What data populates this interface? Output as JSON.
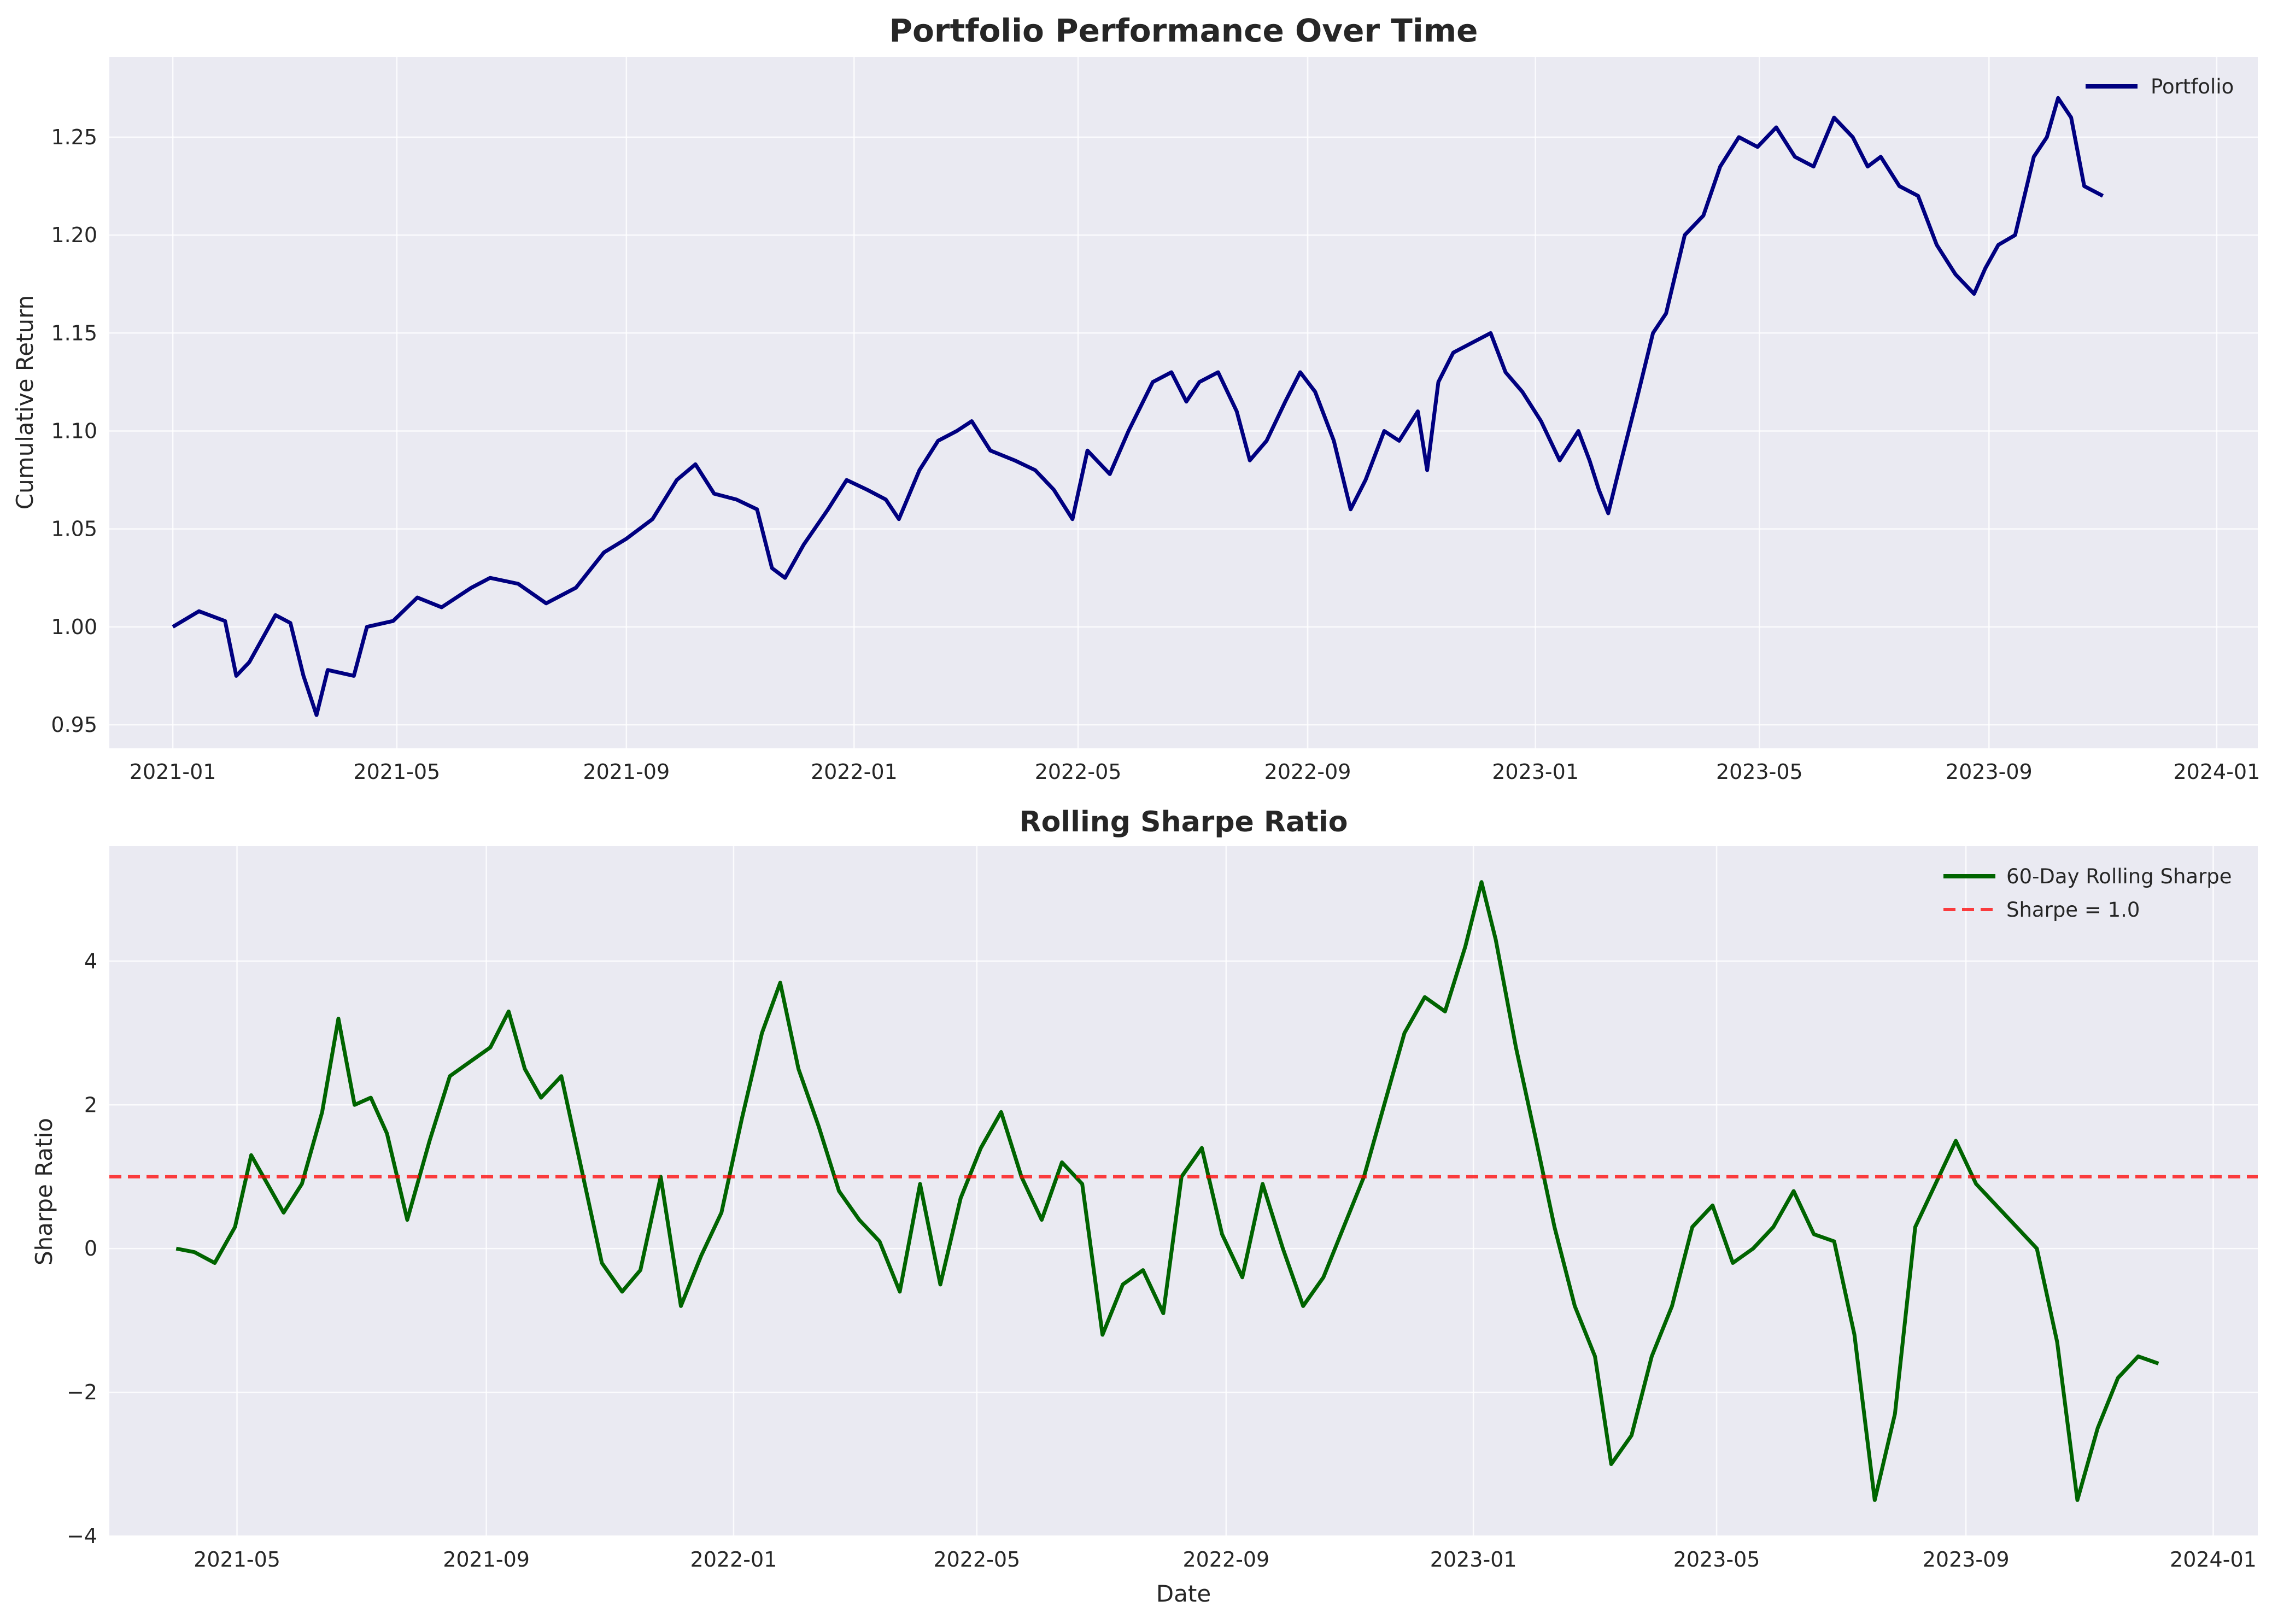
{
  "chart_data": [
    {
      "type": "line",
      "title": "Portfolio Performance Over Time",
      "xlabel": "",
      "ylabel": "Cumulative Return",
      "ylim": [
        0.938,
        1.291
      ],
      "xlim": [
        "2020-11-28",
        "2024-01-23"
      ],
      "x_ticks": [
        "2021-01",
        "2021-05",
        "2021-09",
        "2022-01",
        "2022-05",
        "2022-09",
        "2023-01",
        "2023-05",
        "2023-09",
        "2024-01"
      ],
      "y_ticks": [
        "0.95",
        "1.00",
        "1.05",
        "1.10",
        "1.15",
        "1.20",
        "1.25"
      ],
      "grid": true,
      "legend": "top-right",
      "series": [
        {
          "name": "Portfolio",
          "color": "#000080",
          "points": [
            [
              "2021-01-01",
              1.0
            ],
            [
              "2021-01-15",
              1.008
            ],
            [
              "2021-01-29",
              1.003
            ],
            [
              "2021-02-04",
              0.975
            ],
            [
              "2021-02-11",
              0.982
            ],
            [
              "2021-02-25",
              1.006
            ],
            [
              "2021-03-05",
              1.002
            ],
            [
              "2021-03-12",
              0.975
            ],
            [
              "2021-03-19",
              0.955
            ],
            [
              "2021-03-25",
              0.978
            ],
            [
              "2021-04-08",
              0.975
            ],
            [
              "2021-04-15",
              1.0
            ],
            [
              "2021-04-29",
              1.003
            ],
            [
              "2021-05-12",
              1.015
            ],
            [
              "2021-05-25",
              1.01
            ],
            [
              "2021-06-10",
              1.02
            ],
            [
              "2021-06-20",
              1.025
            ],
            [
              "2021-07-05",
              1.022
            ],
            [
              "2021-07-20",
              1.012
            ],
            [
              "2021-08-05",
              1.02
            ],
            [
              "2021-08-20",
              1.038
            ],
            [
              "2021-09-01",
              1.045
            ],
            [
              "2021-09-15",
              1.055
            ],
            [
              "2021-09-28",
              1.075
            ],
            [
              "2021-10-08",
              1.083
            ],
            [
              "2021-10-18",
              1.068
            ],
            [
              "2021-10-30",
              1.065
            ],
            [
              "2021-11-10",
              1.06
            ],
            [
              "2021-11-18",
              1.03
            ],
            [
              "2021-11-25",
              1.025
            ],
            [
              "2021-12-05",
              1.042
            ],
            [
              "2021-12-18",
              1.06
            ],
            [
              "2021-12-28",
              1.075
            ],
            [
              "2022-01-08",
              1.07
            ],
            [
              "2022-01-18",
              1.065
            ],
            [
              "2022-01-25",
              1.055
            ],
            [
              "2022-02-05",
              1.08
            ],
            [
              "2022-02-15",
              1.095
            ],
            [
              "2022-02-25",
              1.1
            ],
            [
              "2022-03-05",
              1.105
            ],
            [
              "2022-03-15",
              1.09
            ],
            [
              "2022-03-28",
              1.085
            ],
            [
              "2022-04-08",
              1.08
            ],
            [
              "2022-04-18",
              1.07
            ],
            [
              "2022-04-28",
              1.055
            ],
            [
              "2022-05-06",
              1.09
            ],
            [
              "2022-05-18",
              1.078
            ],
            [
              "2022-05-28",
              1.1
            ],
            [
              "2022-06-10",
              1.125
            ],
            [
              "2022-06-20",
              1.13
            ],
            [
              "2022-06-28",
              1.115
            ],
            [
              "2022-07-05",
              1.125
            ],
            [
              "2022-07-15",
              1.13
            ],
            [
              "2022-07-25",
              1.11
            ],
            [
              "2022-08-01",
              1.085
            ],
            [
              "2022-08-10",
              1.095
            ],
            [
              "2022-08-20",
              1.115
            ],
            [
              "2022-08-28",
              1.13
            ],
            [
              "2022-09-05",
              1.12
            ],
            [
              "2022-09-15",
              1.095
            ],
            [
              "2022-09-24",
              1.06
            ],
            [
              "2022-10-02",
              1.075
            ],
            [
              "2022-10-12",
              1.1
            ],
            [
              "2022-10-20",
              1.095
            ],
            [
              "2022-10-30",
              1.11
            ],
            [
              "2022-11-04",
              1.08
            ],
            [
              "2022-11-10",
              1.125
            ],
            [
              "2022-11-18",
              1.14
            ],
            [
              "2022-11-28",
              1.145
            ],
            [
              "2022-12-08",
              1.15
            ],
            [
              "2022-12-16",
              1.13
            ],
            [
              "2022-12-25",
              1.12
            ],
            [
              "2023-01-04",
              1.105
            ],
            [
              "2023-01-14",
              1.085
            ],
            [
              "2023-01-24",
              1.1
            ],
            [
              "2023-01-30",
              1.085
            ],
            [
              "2023-02-04",
              1.07
            ],
            [
              "2023-02-09",
              1.058
            ],
            [
              "2023-02-16",
              1.085
            ],
            [
              "2023-02-24",
              1.115
            ],
            [
              "2023-03-05",
              1.15
            ],
            [
              "2023-03-12",
              1.16
            ],
            [
              "2023-03-22",
              1.2
            ],
            [
              "2023-04-01",
              1.21
            ],
            [
              "2023-04-10",
              1.235
            ],
            [
              "2023-04-20",
              1.25
            ],
            [
              "2023-04-30",
              1.245
            ],
            [
              "2023-05-10",
              1.255
            ],
            [
              "2023-05-20",
              1.24
            ],
            [
              "2023-05-30",
              1.235
            ],
            [
              "2023-06-10",
              1.26
            ],
            [
              "2023-06-20",
              1.25
            ],
            [
              "2023-06-28",
              1.235
            ],
            [
              "2023-07-05",
              1.24
            ],
            [
              "2023-07-15",
              1.225
            ],
            [
              "2023-07-25",
              1.22
            ],
            [
              "2023-08-04",
              1.195
            ],
            [
              "2023-08-14",
              1.18
            ],
            [
              "2023-08-24",
              1.17
            ],
            [
              "2023-08-30",
              1.183
            ],
            [
              "2023-09-06",
              1.195
            ],
            [
              "2023-09-15",
              1.2
            ],
            [
              "2023-09-25",
              1.24
            ],
            [
              "2023-10-02",
              1.25
            ],
            [
              "2023-10-08",
              1.27
            ],
            [
              "2023-10-15",
              1.26
            ],
            [
              "2023-10-22",
              1.225
            ],
            [
              "2023-11-01",
              1.22
            ]
          ]
        }
      ]
    },
    {
      "type": "line",
      "title": "Rolling Sharpe Ratio",
      "xlabel": "Date",
      "ylabel": "Sharpe Ratio",
      "ylim": [
        -4.0,
        5.6
      ],
      "xlim": [
        "2021-02-27",
        "2024-01-23"
      ],
      "x_ticks": [
        "2021-05",
        "2021-09",
        "2022-01",
        "2022-05",
        "2022-09",
        "2023-01",
        "2023-05",
        "2023-09",
        "2024-01"
      ],
      "y_ticks": [
        "−4",
        "−2",
        "0",
        "2",
        "4"
      ],
      "grid": true,
      "legend": "top-right",
      "series": [
        {
          "name": "60-Day Rolling Sharpe",
          "color": "#006400",
          "points": [
            [
              "2021-04-01",
              0.0
            ],
            [
              "2021-04-10",
              -0.05
            ],
            [
              "2021-04-20",
              -0.2
            ],
            [
              "2021-04-30",
              0.3
            ],
            [
              "2021-05-08",
              1.3
            ],
            [
              "2021-05-16",
              0.9
            ],
            [
              "2021-05-24",
              0.5
            ],
            [
              "2021-06-02",
              0.9
            ],
            [
              "2021-06-12",
              1.9
            ],
            [
              "2021-06-20",
              3.2
            ],
            [
              "2021-06-28",
              2.0
            ],
            [
              "2021-07-06",
              2.1
            ],
            [
              "2021-07-14",
              1.6
            ],
            [
              "2021-07-24",
              0.4
            ],
            [
              "2021-08-04",
              1.5
            ],
            [
              "2021-08-14",
              2.4
            ],
            [
              "2021-08-24",
              2.6
            ],
            [
              "2021-09-03",
              2.8
            ],
            [
              "2021-09-12",
              3.3
            ],
            [
              "2021-09-20",
              2.5
            ],
            [
              "2021-09-28",
              2.1
            ],
            [
              "2021-10-08",
              2.4
            ],
            [
              "2021-10-18",
              1.1
            ],
            [
              "2021-10-28",
              -0.2
            ],
            [
              "2021-11-07",
              -0.6
            ],
            [
              "2021-11-16",
              -0.3
            ],
            [
              "2021-11-26",
              1.0
            ],
            [
              "2021-12-06",
              -0.8
            ],
            [
              "2021-12-16",
              -0.1
            ],
            [
              "2021-12-26",
              0.5
            ],
            [
              "2022-01-05",
              1.8
            ],
            [
              "2022-01-15",
              3.0
            ],
            [
              "2022-01-24",
              3.7
            ],
            [
              "2022-02-02",
              2.5
            ],
            [
              "2022-02-12",
              1.7
            ],
            [
              "2022-02-22",
              0.8
            ],
            [
              "2022-03-04",
              0.4
            ],
            [
              "2022-03-14",
              0.1
            ],
            [
              "2022-03-24",
              -0.6
            ],
            [
              "2022-04-03",
              0.9
            ],
            [
              "2022-04-13",
              -0.5
            ],
            [
              "2022-04-23",
              0.7
            ],
            [
              "2022-05-03",
              1.4
            ],
            [
              "2022-05-13",
              1.9
            ],
            [
              "2022-05-23",
              1.0
            ],
            [
              "2022-06-02",
              0.4
            ],
            [
              "2022-06-12",
              1.2
            ],
            [
              "2022-06-22",
              0.9
            ],
            [
              "2022-07-02",
              -1.2
            ],
            [
              "2022-07-12",
              -0.5
            ],
            [
              "2022-07-22",
              -0.3
            ],
            [
              "2022-08-01",
              -0.9
            ],
            [
              "2022-08-10",
              1.0
            ],
            [
              "2022-08-20",
              1.4
            ],
            [
              "2022-08-30",
              0.2
            ],
            [
              "2022-09-09",
              -0.4
            ],
            [
              "2022-09-19",
              0.9
            ],
            [
              "2022-09-29",
              0.0
            ],
            [
              "2022-10-09",
              -0.8
            ],
            [
              "2022-10-19",
              -0.4
            ],
            [
              "2022-10-29",
              0.3
            ],
            [
              "2022-11-08",
              1.0
            ],
            [
              "2022-11-18",
              2.0
            ],
            [
              "2022-11-28",
              3.0
            ],
            [
              "2022-12-08",
              3.5
            ],
            [
              "2022-12-18",
              3.3
            ],
            [
              "2022-12-28",
              4.2
            ],
            [
              "2023-01-05",
              5.1
            ],
            [
              "2023-01-12",
              4.3
            ],
            [
              "2023-01-22",
              2.8
            ],
            [
              "2023-02-01",
              1.5
            ],
            [
              "2023-02-10",
              0.3
            ],
            [
              "2023-02-20",
              -0.8
            ],
            [
              "2023-03-02",
              -1.5
            ],
            [
              "2023-03-10",
              -3.0
            ],
            [
              "2023-03-20",
              -2.6
            ],
            [
              "2023-03-30",
              -1.5
            ],
            [
              "2023-04-09",
              -0.8
            ],
            [
              "2023-04-19",
              0.3
            ],
            [
              "2023-04-29",
              0.6
            ],
            [
              "2023-05-09",
              -0.2
            ],
            [
              "2023-05-19",
              0.0
            ],
            [
              "2023-05-29",
              0.3
            ],
            [
              "2023-06-08",
              0.8
            ],
            [
              "2023-06-18",
              0.2
            ],
            [
              "2023-06-28",
              0.1
            ],
            [
              "2023-07-08",
              -1.2
            ],
            [
              "2023-07-18",
              -3.5
            ],
            [
              "2023-07-28",
              -2.3
            ],
            [
              "2023-08-07",
              0.3
            ],
            [
              "2023-08-17",
              0.9
            ],
            [
              "2023-08-27",
              1.5
            ],
            [
              "2023-09-06",
              0.9
            ],
            [
              "2023-09-16",
              0.6
            ],
            [
              "2023-09-26",
              0.3
            ],
            [
              "2023-10-06",
              0.0
            ],
            [
              "2023-10-16",
              -1.3
            ],
            [
              "2023-10-26",
              -3.5
            ],
            [
              "2023-11-05",
              -2.5
            ],
            [
              "2023-11-15",
              -1.8
            ],
            [
              "2023-11-25",
              -1.5
            ],
            [
              "2023-12-05",
              -1.6
            ]
          ]
        },
        {
          "name": "Sharpe = 1.0",
          "color": "#ff0000",
          "style": "dashed",
          "value": 1.0
        }
      ]
    }
  ]
}
